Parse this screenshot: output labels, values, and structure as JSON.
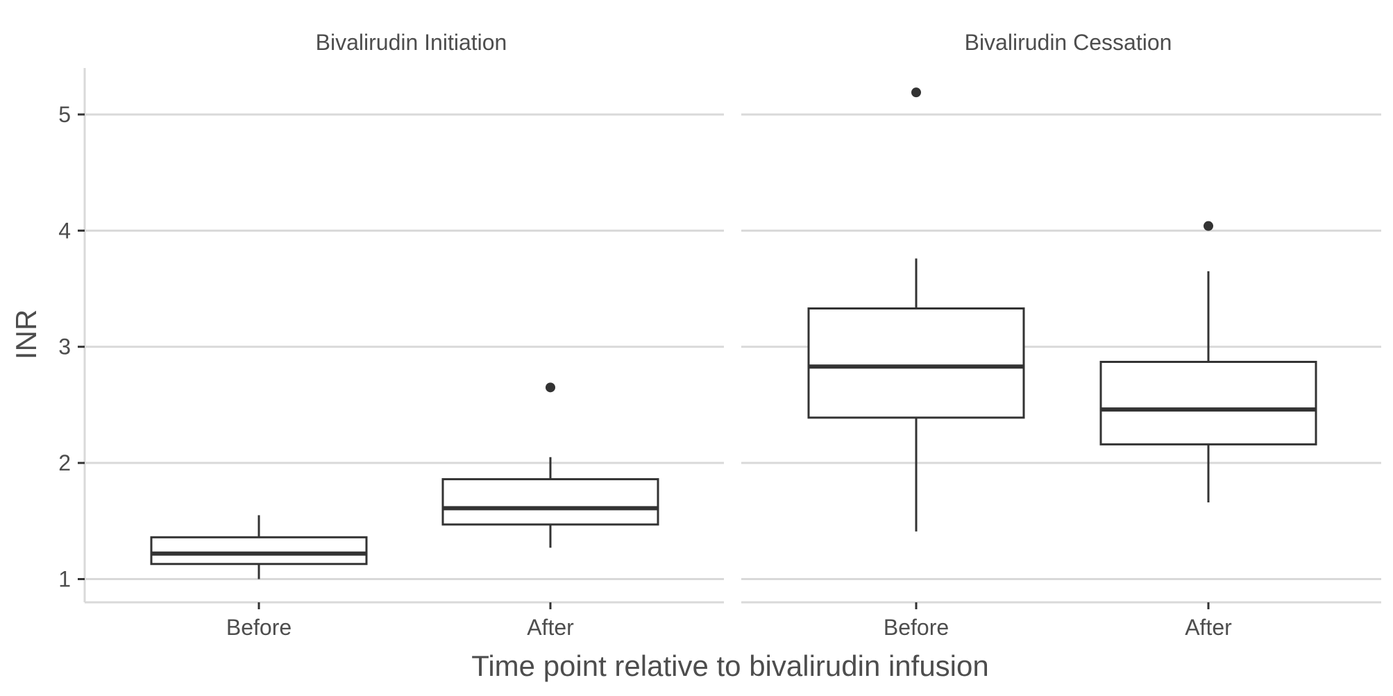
{
  "chart_data": {
    "type": "box",
    "xlabel": "Time point relative to bivalirudin infusion",
    "ylabel": "INR",
    "ylim": [
      0.8,
      5.4
    ],
    "yticks": [
      1,
      2,
      3,
      4,
      5
    ],
    "grid": "horizontal",
    "categories": [
      "Before",
      "After"
    ],
    "panels": [
      {
        "title": "Bivalirudin Initiation",
        "boxes": [
          {
            "category": "Before",
            "whisker_low": 1.0,
            "q1": 1.13,
            "median": 1.22,
            "q3": 1.36,
            "whisker_high": 1.55,
            "outliers": []
          },
          {
            "category": "After",
            "whisker_low": 1.27,
            "q1": 1.47,
            "median": 1.61,
            "q3": 1.86,
            "whisker_high": 2.05,
            "outliers": [
              2.65
            ]
          }
        ]
      },
      {
        "title": "Bivalirudin Cessation",
        "boxes": [
          {
            "category": "Before",
            "whisker_low": 1.41,
            "q1": 2.39,
            "median": 2.83,
            "q3": 3.33,
            "whisker_high": 3.76,
            "outliers": [
              5.19
            ]
          },
          {
            "category": "After",
            "whisker_low": 1.66,
            "q1": 2.16,
            "median": 2.46,
            "q3": 2.87,
            "whisker_high": 3.65,
            "outliers": [
              4.04
            ]
          }
        ]
      }
    ]
  },
  "colors": {
    "box_stroke": "#333333",
    "grid": "#d9d9d9",
    "axis_line": "#d9d9d9",
    "text": "#4d4d4d",
    "outlier": "#333333"
  }
}
